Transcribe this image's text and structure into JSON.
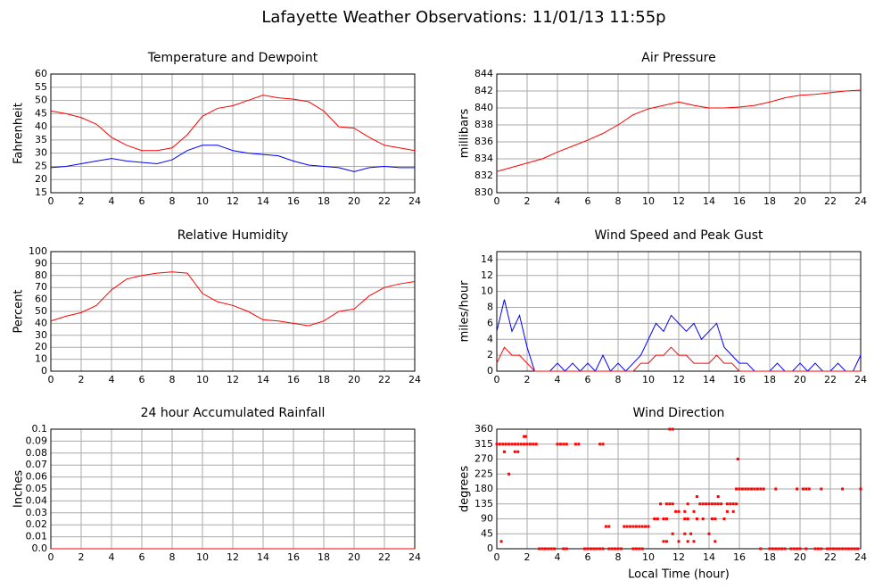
{
  "title": "Lafayette Weather Observations: 11/01/13 11:55p",
  "chart_data": [
    {
      "type": "line",
      "title": "Temperature and Dewpoint",
      "ylabel": "Fahrenheit",
      "x": [
        0,
        1,
        2,
        3,
        4,
        5,
        6,
        7,
        8,
        9,
        10,
        11,
        12,
        13,
        14,
        15,
        16,
        17,
        18,
        19,
        20,
        21,
        22,
        23,
        24
      ],
      "series": [
        {
          "name": "Temperature",
          "color": "#ff0000",
          "values": [
            46,
            45,
            43.5,
            41,
            36,
            33,
            31,
            31,
            32,
            37,
            44,
            47,
            48,
            50,
            52,
            51,
            50.5,
            49.5,
            46,
            40,
            39.5,
            36,
            33,
            32,
            31
          ]
        },
        {
          "name": "Dewpoint",
          "color": "#0000ff",
          "values": [
            24.5,
            25,
            26,
            27,
            28,
            27,
            26.5,
            26,
            27.5,
            31,
            33,
            33,
            31,
            30,
            29.5,
            29,
            27,
            25.5,
            25,
            24.5,
            23,
            24.5,
            25,
            24.5,
            24.5
          ]
        }
      ],
      "xlim": [
        0,
        24
      ],
      "xticks": [
        0,
        2,
        4,
        6,
        8,
        10,
        12,
        14,
        16,
        18,
        20,
        22,
        24
      ],
      "ylim": [
        15,
        60
      ],
      "yticks": [
        15,
        20,
        25,
        30,
        35,
        40,
        45,
        50,
        55,
        60
      ],
      "grid": true
    },
    {
      "type": "line",
      "title": "Air Pressure",
      "ylabel": "millibars",
      "x": [
        0,
        1,
        2,
        3,
        4,
        5,
        6,
        7,
        8,
        9,
        10,
        11,
        12,
        13,
        14,
        15,
        16,
        17,
        18,
        19,
        20,
        21,
        22,
        23,
        24
      ],
      "series": [
        {
          "name": "Pressure",
          "color": "#ff0000",
          "values": [
            832.5,
            833,
            833.5,
            834,
            834.8,
            835.5,
            836.2,
            837,
            838,
            839.2,
            839.9,
            840.3,
            840.7,
            840.3,
            840,
            840,
            840.1,
            840.3,
            840.7,
            841.2,
            841.5,
            841.6,
            841.8,
            842,
            842.1
          ]
        }
      ],
      "xlim": [
        0,
        24
      ],
      "xticks": [
        0,
        2,
        4,
        6,
        8,
        10,
        12,
        14,
        16,
        18,
        20,
        22,
        24
      ],
      "ylim": [
        830,
        844
      ],
      "yticks": [
        830,
        832,
        834,
        836,
        838,
        840,
        842,
        844
      ],
      "grid": true
    },
    {
      "type": "line",
      "title": "Relative Humidity",
      "ylabel": "Percent",
      "x": [
        0,
        1,
        2,
        3,
        4,
        5,
        6,
        7,
        8,
        9,
        10,
        11,
        12,
        13,
        14,
        15,
        16,
        17,
        18,
        19,
        20,
        21,
        22,
        23,
        24
      ],
      "series": [
        {
          "name": "Humidity",
          "color": "#ff0000",
          "values": [
            42,
            46,
            49,
            55,
            68,
            77,
            80,
            82,
            83,
            82,
            65,
            58,
            55,
            50,
            43,
            42,
            40,
            38,
            42,
            50,
            52,
            63,
            70,
            73,
            75
          ]
        }
      ],
      "xlim": [
        0,
        24
      ],
      "xticks": [
        0,
        2,
        4,
        6,
        8,
        10,
        12,
        14,
        16,
        18,
        20,
        22,
        24
      ],
      "ylim": [
        0,
        100
      ],
      "yticks": [
        0,
        10,
        20,
        30,
        40,
        50,
        60,
        70,
        80,
        90,
        100
      ],
      "grid": true
    },
    {
      "type": "line",
      "title": "Wind Speed and Peak Gust",
      "ylabel": "miles/hour",
      "x": [
        0,
        0.5,
        1,
        1.5,
        2,
        2.5,
        3,
        3.5,
        4,
        4.5,
        5,
        5.5,
        6,
        6.5,
        7,
        7.5,
        8,
        8.5,
        9,
        9.5,
        10,
        10.5,
        11,
        11.5,
        12,
        12.5,
        13,
        13.5,
        14,
        14.5,
        15,
        15.5,
        16,
        16.5,
        17,
        17.5,
        18,
        18.5,
        19,
        19.5,
        20,
        20.5,
        21,
        21.5,
        22,
        22.5,
        23,
        23.5,
        24
      ],
      "series": [
        {
          "name": "Peak Gust",
          "color": "#0000ff",
          "values": [
            5,
            9,
            5,
            7,
            3,
            0,
            0,
            0,
            1,
            0,
            1,
            0,
            1,
            0,
            2,
            0,
            1,
            0,
            1,
            2,
            4,
            6,
            5,
            7,
            6,
            5,
            6,
            4,
            5,
            6,
            3,
            2,
            1,
            1,
            0,
            0,
            0,
            1,
            0,
            0,
            1,
            0,
            1,
            0,
            0,
            1,
            0,
            0,
            2
          ]
        },
        {
          "name": "Wind Speed",
          "color": "#ff0000",
          "values": [
            1,
            3,
            2,
            2,
            1,
            0,
            0,
            0,
            0,
            0,
            0,
            0,
            0,
            0,
            0,
            0,
            0,
            0,
            0,
            1,
            1,
            2,
            2,
            3,
            2,
            2,
            1,
            1,
            1,
            2,
            1,
            1,
            0,
            0,
            0,
            0,
            0,
            0,
            0,
            0,
            0,
            0,
            0,
            0,
            0,
            0,
            0,
            0,
            0
          ]
        }
      ],
      "xlim": [
        0,
        24
      ],
      "xticks": [
        0,
        2,
        4,
        6,
        8,
        10,
        12,
        14,
        16,
        18,
        20,
        22,
        24
      ],
      "ylim": [
        0,
        15
      ],
      "yticks": [
        0,
        2,
        4,
        6,
        8,
        10,
        12,
        14
      ],
      "grid": true
    },
    {
      "type": "line",
      "title": "24 hour Accumulated Rainfall",
      "ylabel": "Inches",
      "x": [
        0,
        24
      ],
      "series": [
        {
          "name": "Rainfall",
          "color": "#ff0000",
          "values": [
            0,
            0
          ]
        }
      ],
      "xlim": [
        0,
        24
      ],
      "xticks": [
        0,
        2,
        4,
        6,
        8,
        10,
        12,
        14,
        16,
        18,
        20,
        22,
        24
      ],
      "ylim": [
        0,
        0.1
      ],
      "yticks": [
        {
          "value": 0,
          "label": "0.0"
        },
        0.01,
        0.02,
        0.03,
        0.04,
        0.05,
        0.06,
        0.07,
        0.08,
        0.09,
        0.1
      ],
      "grid": true
    },
    {
      "type": "scatter",
      "title": "Wind Direction",
      "ylabel": "degrees",
      "xlabel": "Local Time (hour)",
      "color": "#ff0000",
      "x": [
        0,
        0.2,
        0.4,
        0.6,
        0.8,
        1,
        1.2,
        1.4,
        1.6,
        1.8,
        2,
        2.2,
        2.4,
        2.6,
        4,
        4.2,
        4.4,
        4.6,
        5.2,
        5.4,
        6.8,
        7,
        1.8,
        1.9,
        0.5,
        1.2,
        1.4,
        0.8,
        0.3,
        15.9,
        2.8,
        3,
        3.2,
        3.4,
        3.6,
        3.8,
        4.4,
        4.6,
        5.8,
        6,
        6.2,
        6.4,
        6.6,
        6.8,
        7,
        7.4,
        7.6,
        7.8,
        8,
        8.2,
        9,
        9.2,
        9.4,
        9.6,
        17.4,
        18,
        18.2,
        18.4,
        18.6,
        18.8,
        19,
        19.4,
        19.6,
        19.8,
        20,
        20.4,
        21,
        21.2,
        21.4,
        21.8,
        22,
        22.2,
        22.4,
        22.6,
        22.8,
        23,
        23.2,
        23.4,
        23.6,
        23.8,
        7.2,
        7.4,
        8.4,
        8.6,
        8.8,
        9,
        9.2,
        9.4,
        9.6,
        9.8,
        10,
        10.4,
        10.6,
        11,
        11.2,
        12.4,
        12.6,
        13.2,
        13.6,
        14.2,
        14.4,
        15,
        10.8,
        11.2,
        11.4,
        11.6,
        12.6,
        13.4,
        13.6,
        13.8,
        14,
        14.2,
        14.4,
        14.6,
        14.8,
        15.2,
        15.4,
        15.6,
        15.8,
        11.8,
        12,
        12.4,
        13,
        15.2,
        15.6,
        11,
        11.2,
        12,
        12.6,
        13,
        14.4,
        11.6,
        12.4,
        12.8,
        14,
        13.2,
        14.6,
        11.4,
        11.6,
        15.8,
        16,
        16.2,
        16.4,
        16.6,
        16.8,
        17,
        17.2,
        17.4,
        17.6,
        18.4,
        19.8,
        20.2,
        20.4,
        20.6,
        21.4,
        22.8,
        24
      ],
      "y": [
        315,
        315,
        315,
        315,
        315,
        315,
        315,
        315,
        315,
        315,
        315,
        315,
        315,
        315,
        315,
        315,
        315,
        315,
        315,
        315,
        315,
        315,
        338,
        338,
        292,
        292,
        292,
        225,
        22,
        270,
        0,
        0,
        0,
        0,
        0,
        0,
        0,
        0,
        0,
        0,
        0,
        0,
        0,
        0,
        0,
        0,
        0,
        0,
        0,
        0,
        0,
        0,
        0,
        0,
        0,
        0,
        0,
        0,
        0,
        0,
        0,
        0,
        0,
        0,
        0,
        0,
        0,
        0,
        0,
        0,
        0,
        0,
        0,
        0,
        0,
        0,
        0,
        0,
        0,
        0,
        67,
        67,
        67,
        67,
        67,
        67,
        67,
        67,
        67,
        67,
        67,
        90,
        90,
        90,
        90,
        90,
        90,
        90,
        90,
        90,
        90,
        90,
        135,
        135,
        135,
        135,
        135,
        135,
        135,
        135,
        135,
        135,
        135,
        135,
        135,
        135,
        135,
        135,
        135,
        112,
        112,
        112,
        112,
        112,
        112,
        22,
        22,
        22,
        22,
        22,
        22,
        45,
        45,
        45,
        45,
        157,
        157,
        360,
        360,
        180,
        180,
        180,
        180,
        180,
        180,
        180,
        180,
        180,
        180,
        180,
        180,
        180,
        180,
        180,
        180,
        180,
        180
      ],
      "xlim": [
        0,
        24
      ],
      "xticks": [
        0,
        2,
        4,
        6,
        8,
        10,
        12,
        14,
        16,
        18,
        20,
        22,
        24
      ],
      "ylim": [
        0,
        360
      ],
      "yticks": [
        0,
        45,
        90,
        135,
        180,
        225,
        270,
        315,
        360
      ],
      "grid": true
    }
  ]
}
